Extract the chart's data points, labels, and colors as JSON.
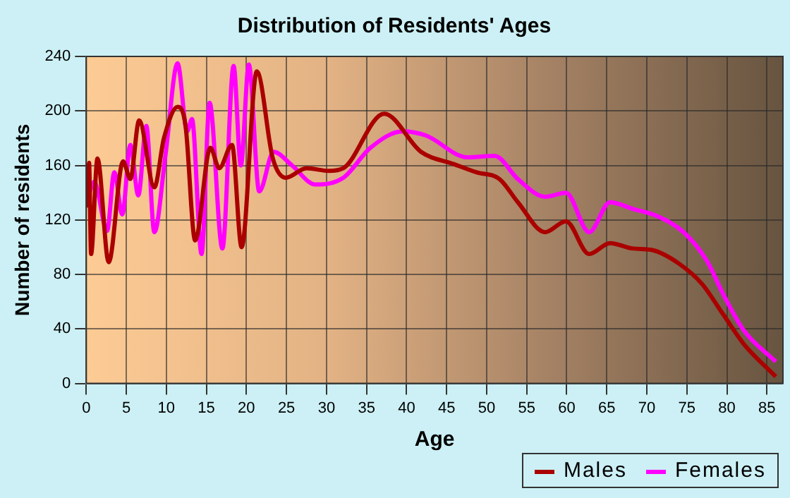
{
  "chart_data": {
    "type": "line",
    "title": "Distribution of Residents' Ages",
    "xlabel": "Age",
    "ylabel": "Number of residents",
    "xlim": [
      0,
      87
    ],
    "xticks": [
      0,
      5,
      10,
      15,
      20,
      25,
      30,
      35,
      40,
      45,
      50,
      55,
      60,
      65,
      70,
      75,
      80,
      85
    ],
    "ylim": [
      0,
      240
    ],
    "yticks": [
      0,
      40,
      80,
      120,
      160,
      200,
      240
    ],
    "grid": true,
    "legend": "bottom right",
    "marker": "none",
    "line_style": "solid",
    "series": [
      {
        "name": "Males",
        "color": "#aa0000",
        "x": [
          0.1,
          0.35,
          0.6,
          1.4,
          2.8,
          4.6,
          5.5,
          6.6,
          8.5,
          9.7,
          11.4,
          12.4,
          13.6,
          15.5,
          16.6,
          18.2,
          19.4,
          21.3,
          23.3,
          24.9,
          27.5,
          30.3,
          32.1,
          37.2,
          41.8,
          45.9,
          48.7,
          51.6,
          53.9,
          57.3,
          59.9,
          62.8,
          65.4,
          68.3,
          70.6,
          74,
          76.9,
          79.5,
          82.1,
          86.1
        ],
        "values": [
          129,
          162,
          95,
          165,
          89,
          163,
          150,
          193,
          144,
          180,
          203,
          189,
          105,
          173,
          158,
          175,
          100,
          229,
          165,
          151,
          158,
          156,
          158,
          198,
          170,
          161,
          155,
          150,
          133,
          111,
          119,
          95,
          103,
          99,
          98,
          88,
          73,
          51,
          29,
          5
        ]
      },
      {
        "name": "Females",
        "color": "#ff00ff",
        "x": [
          0.1,
          1,
          2.6,
          3.5,
          4.5,
          5.5,
          6.5,
          7.5,
          8.5,
          9.9,
          11.4,
          12.6,
          13.2,
          14.4,
          15.4,
          17,
          18.4,
          19.3,
          20.3,
          21.6,
          23.4,
          25.7,
          28.6,
          32.1,
          35.5,
          39.5,
          42.4,
          47.6,
          51,
          53.9,
          57.3,
          59.9,
          62.8,
          65.4,
          68.3,
          71.2,
          74.6,
          77.5,
          79.5,
          82.1,
          86.1
        ],
        "values": [
          134,
          148,
          112,
          155,
          124,
          175,
          138,
          189,
          111,
          168,
          235,
          185,
          194,
          95,
          206,
          99,
          233,
          160,
          234,
          141,
          170,
          160,
          146,
          151,
          173,
          185,
          182,
          166,
          167,
          150,
          137,
          140,
          111,
          133,
          128,
          123,
          111,
          90,
          66,
          39,
          16
        ]
      }
    ]
  }
}
